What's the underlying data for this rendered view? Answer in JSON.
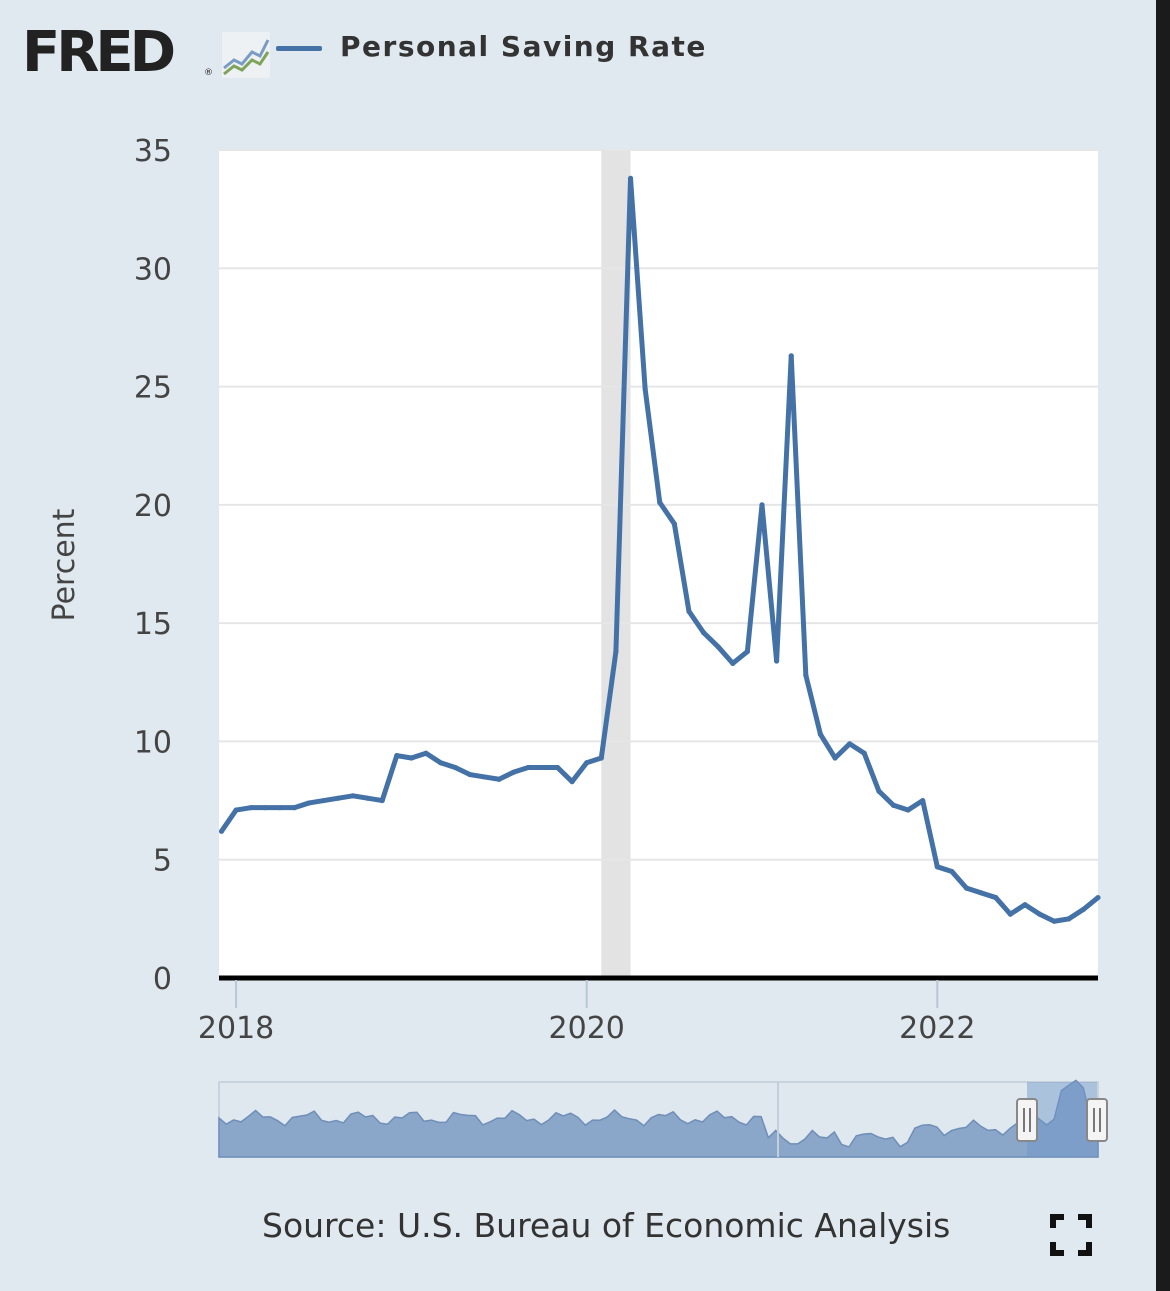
{
  "header": {
    "logo_text": "FRED",
    "logo_reg": "®"
  },
  "legend": {
    "label": "Personal Saving Rate",
    "color": "#4472a7"
  },
  "source": "Source: U.S. Bureau of Economic Analysis",
  "colors": {
    "background": "#e1e9f0",
    "plot_background": "#ffffff",
    "line": "#4472a7",
    "recession": "#e3e3e3",
    "grid": "#e6e6e6",
    "navigator_fill": "#8aa6c8"
  },
  "chart_data": {
    "type": "line",
    "title": "",
    "ylabel": "Percent",
    "xlabel": "",
    "ylim": [
      0,
      35
    ],
    "yticks": [
      "0",
      "5",
      "10",
      "15",
      "20",
      "25",
      "30",
      "35"
    ],
    "xticks": [
      "2018",
      "2020",
      "2022"
    ],
    "grid": true,
    "legend_position": "top",
    "recession": {
      "start": "2020-02",
      "end": "2020-04"
    },
    "series": [
      {
        "name": "Personal Saving Rate",
        "x": [
          "2017-12",
          "2018-01",
          "2018-02",
          "2018-03",
          "2018-04",
          "2018-05",
          "2018-06",
          "2018-07",
          "2018-08",
          "2018-09",
          "2018-10",
          "2018-11",
          "2018-12",
          "2019-01",
          "2019-02",
          "2019-03",
          "2019-04",
          "2019-05",
          "2019-06",
          "2019-07",
          "2019-08",
          "2019-09",
          "2019-10",
          "2019-11",
          "2019-12",
          "2020-01",
          "2020-02",
          "2020-03",
          "2020-04",
          "2020-05",
          "2020-06",
          "2020-07",
          "2020-08",
          "2020-09",
          "2020-10",
          "2020-11",
          "2020-12",
          "2021-01",
          "2021-02",
          "2021-03",
          "2021-04",
          "2021-05",
          "2021-06",
          "2021-07",
          "2021-08",
          "2021-09",
          "2021-10",
          "2021-11",
          "2021-12",
          "2022-01",
          "2022-02",
          "2022-03",
          "2022-04",
          "2022-05",
          "2022-06",
          "2022-07",
          "2022-08",
          "2022-09",
          "2022-10",
          "2022-11",
          "2022-12"
        ],
        "values": [
          6.2,
          7.1,
          7.2,
          7.2,
          7.2,
          7.2,
          7.4,
          7.5,
          7.6,
          7.7,
          7.6,
          7.5,
          9.4,
          9.3,
          9.5,
          9.1,
          8.9,
          8.6,
          8.5,
          8.4,
          8.7,
          8.9,
          8.9,
          8.9,
          8.3,
          9.1,
          9.3,
          13.8,
          33.8,
          24.9,
          20.1,
          19.2,
          15.5,
          14.6,
          14.0,
          13.3,
          13.8,
          20.0,
          13.4,
          26.3,
          12.8,
          10.3,
          9.3,
          9.9,
          9.5,
          7.9,
          7.3,
          7.1,
          7.5,
          4.7,
          4.5,
          3.8,
          3.6,
          3.4,
          2.7,
          3.1,
          2.7,
          2.4,
          2.5,
          2.9,
          3.4
        ]
      }
    ]
  }
}
